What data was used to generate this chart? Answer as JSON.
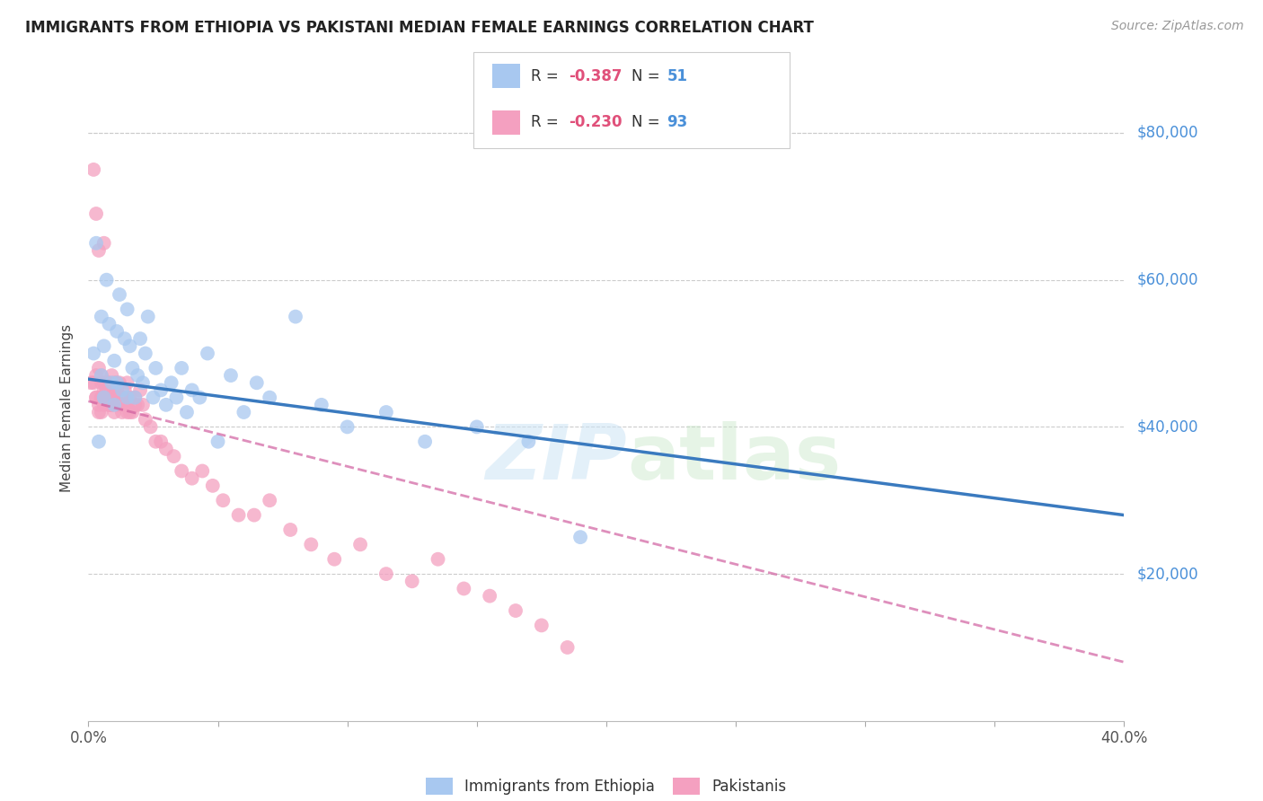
{
  "title": "IMMIGRANTS FROM ETHIOPIA VS PAKISTANI MEDIAN FEMALE EARNINGS CORRELATION CHART",
  "source": "Source: ZipAtlas.com",
  "ylabel": "Median Female Earnings",
  "xlim": [
    0.0,
    0.4
  ],
  "ylim": [
    0,
    85000
  ],
  "yticks": [
    20000,
    40000,
    60000,
    80000
  ],
  "ytick_labels": [
    "$20,000",
    "$40,000",
    "$60,000",
    "$80,000"
  ],
  "background_color": "#ffffff",
  "color_ethiopia": "#a8c8f0",
  "color_pakistan": "#f4a0c0",
  "line_color_ethiopia": "#3a7abf",
  "line_color_pakistan": "#d060a0",
  "eth_line_x0": 0.0,
  "eth_line_y0": 46500,
  "eth_line_x1": 0.4,
  "eth_line_y1": 28000,
  "pak_line_x0": 0.0,
  "pak_line_y0": 43500,
  "pak_line_x1": 0.4,
  "pak_line_y1": 8000,
  "legend_r1": "R = ",
  "legend_v1": "-0.387",
  "legend_n1_label": "N = ",
  "legend_n1": "51",
  "legend_r2": "R = ",
  "legend_v2": "-0.230",
  "legend_n2_label": "N = ",
  "legend_n2": "93",
  "eth_scatter_x": [
    0.002,
    0.003,
    0.004,
    0.005,
    0.005,
    0.006,
    0.006,
    0.007,
    0.008,
    0.009,
    0.01,
    0.01,
    0.011,
    0.011,
    0.012,
    0.013,
    0.014,
    0.015,
    0.015,
    0.016,
    0.017,
    0.018,
    0.019,
    0.02,
    0.021,
    0.022,
    0.023,
    0.025,
    0.026,
    0.028,
    0.03,
    0.032,
    0.034,
    0.036,
    0.038,
    0.04,
    0.043,
    0.046,
    0.05,
    0.055,
    0.06,
    0.065,
    0.07,
    0.08,
    0.09,
    0.1,
    0.115,
    0.13,
    0.15,
    0.17,
    0.19
  ],
  "eth_scatter_y": [
    50000,
    65000,
    38000,
    55000,
    47000,
    44000,
    51000,
    60000,
    54000,
    46000,
    49000,
    43000,
    53000,
    46000,
    58000,
    45000,
    52000,
    56000,
    44000,
    51000,
    48000,
    44000,
    47000,
    52000,
    46000,
    50000,
    55000,
    44000,
    48000,
    45000,
    43000,
    46000,
    44000,
    48000,
    42000,
    45000,
    44000,
    50000,
    38000,
    47000,
    42000,
    46000,
    44000,
    55000,
    43000,
    40000,
    42000,
    38000,
    40000,
    38000,
    25000
  ],
  "pak_scatter_x": [
    0.001,
    0.002,
    0.002,
    0.003,
    0.003,
    0.004,
    0.004,
    0.005,
    0.005,
    0.005,
    0.006,
    0.006,
    0.006,
    0.007,
    0.007,
    0.007,
    0.008,
    0.008,
    0.008,
    0.009,
    0.009,
    0.009,
    0.01,
    0.01,
    0.01,
    0.011,
    0.011,
    0.012,
    0.012,
    0.013,
    0.013,
    0.014,
    0.014,
    0.015,
    0.015,
    0.016,
    0.017,
    0.018,
    0.019,
    0.02,
    0.021,
    0.022,
    0.024,
    0.026,
    0.028,
    0.03,
    0.033,
    0.036,
    0.04,
    0.044,
    0.048,
    0.052,
    0.058,
    0.064,
    0.07,
    0.078,
    0.086,
    0.095,
    0.105,
    0.115,
    0.125,
    0.135,
    0.145,
    0.155,
    0.165,
    0.175,
    0.185,
    0.005,
    0.004,
    0.006,
    0.007,
    0.008,
    0.009,
    0.01,
    0.011,
    0.012,
    0.013,
    0.014,
    0.016,
    0.018,
    0.003,
    0.003,
    0.004,
    0.005,
    0.006,
    0.007,
    0.008,
    0.009,
    0.01,
    0.011,
    0.012,
    0.013,
    0.015
  ],
  "pak_scatter_y": [
    46000,
    75000,
    46000,
    69000,
    44000,
    64000,
    43000,
    47000,
    44000,
    42000,
    46000,
    44000,
    43000,
    46000,
    45000,
    44000,
    46000,
    44000,
    43000,
    47000,
    44000,
    43000,
    46000,
    44000,
    42000,
    46000,
    43000,
    44000,
    46000,
    44000,
    42000,
    45000,
    43000,
    46000,
    43000,
    44000,
    42000,
    44000,
    43000,
    45000,
    43000,
    41000,
    40000,
    38000,
    38000,
    37000,
    36000,
    34000,
    33000,
    34000,
    32000,
    30000,
    28000,
    28000,
    30000,
    26000,
    24000,
    22000,
    24000,
    20000,
    19000,
    22000,
    18000,
    17000,
    15000,
    13000,
    10000,
    46000,
    48000,
    65000,
    46000,
    44000,
    43000,
    44000,
    45000,
    43000,
    44000,
    43000,
    42000,
    43000,
    47000,
    44000,
    42000,
    44000,
    45000,
    46000,
    43000,
    44000,
    45000,
    44000,
    43000,
    44000,
    42000
  ]
}
